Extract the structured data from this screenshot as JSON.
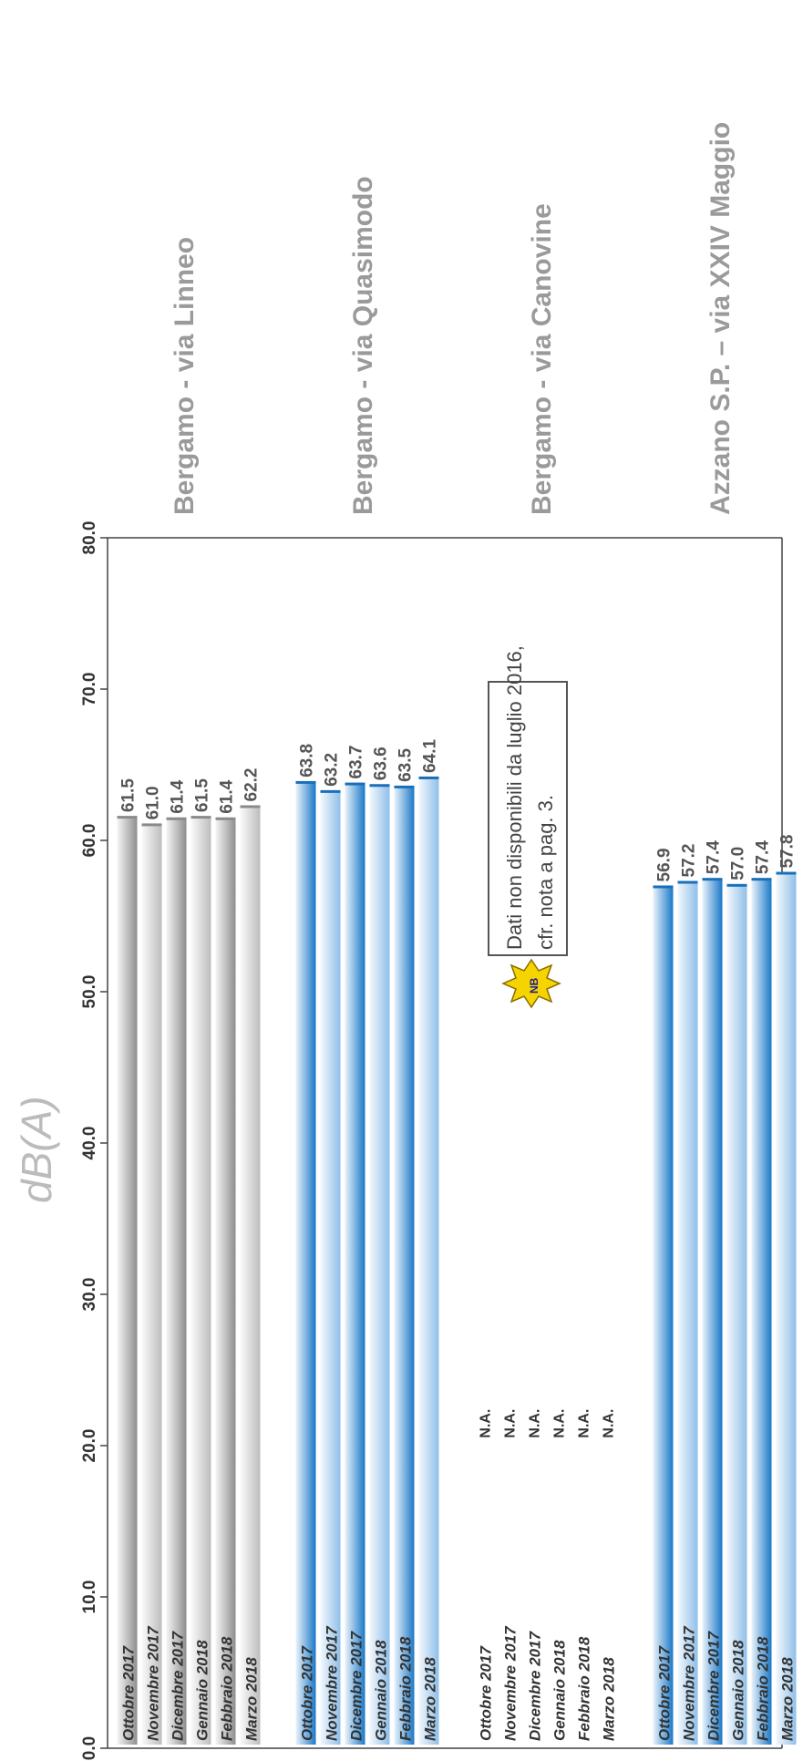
{
  "chart_data": {
    "type": "bar",
    "orientation": "horizontal",
    "ylabel": "dB(A)",
    "ylim": [
      0,
      80
    ],
    "ticks": [
      "0.0",
      "10.0",
      "20.0",
      "30.0",
      "40.0",
      "50.0",
      "60.0",
      "70.0",
      "80.0"
    ],
    "tick_values": [
      0,
      10,
      20,
      30,
      40,
      50,
      60,
      70,
      80
    ],
    "grid": false,
    "groups": [
      {
        "name": "Bergamo - via Linneo",
        "style": "gray",
        "categories": [
          "Ottobre 2017",
          "Novembre 2017",
          "Dicembre 2017",
          "Gennaio 2018",
          "Febbraio 2018",
          "Marzo 2018"
        ],
        "values": [
          61.5,
          61.0,
          61.4,
          61.5,
          61.4,
          62.2
        ],
        "labels": [
          "61.5",
          "61.0",
          "61.4",
          "61.5",
          "61.4",
          "62.2"
        ]
      },
      {
        "name": "Bergamo - via Quasimodo",
        "style": "blue",
        "categories": [
          "Ottobre 2017",
          "Novembre 2017",
          "Dicembre 2017",
          "Gennaio 2018",
          "Febbraio 2018",
          "Marzo 2018"
        ],
        "values": [
          63.8,
          63.2,
          63.7,
          63.6,
          63.5,
          64.1
        ],
        "labels": [
          "63.8",
          "63.2",
          "63.7",
          "63.6",
          "63.5",
          "64.1"
        ]
      },
      {
        "name": "Bergamo - via Canovine",
        "style": "none",
        "categories": [
          "Ottobre 2017",
          "Novembre 2017",
          "Dicembre 2017",
          "Gennaio 2018",
          "Febbraio 2018",
          "Marzo 2018"
        ],
        "values": [
          null,
          null,
          null,
          null,
          null,
          null
        ],
        "labels": [
          "N.A.",
          "N.A.",
          "N.A.",
          "N.A.",
          "N.A.",
          "N.A."
        ]
      },
      {
        "name": "Azzano S.P. – via XXIV Maggio",
        "style": "blue",
        "categories": [
          "Ottobre 2017",
          "Novembre 2017",
          "Dicembre 2017",
          "Gennaio 2018",
          "Febbraio 2018",
          "Marzo 2018"
        ],
        "values": [
          56.9,
          57.2,
          57.4,
          57.0,
          57.4,
          57.8
        ],
        "labels": [
          "56.9",
          "57.2",
          "57.4",
          "57.0",
          "57.4",
          "57.8"
        ]
      }
    ],
    "note": {
      "badge": "NB",
      "line1": "Dati non disponibili da luglio 2016,",
      "line2": "cfr. nota a pag. 3."
    },
    "colors": {
      "gray_dark": "#8e8e8e",
      "gray_light": "#f2f2f2",
      "blue_dark": "#1a78c8",
      "blue_light": "#e6f1fb",
      "title": "#9a9a9a",
      "label": "#555555",
      "category": "#333333",
      "badge_fill": "#f5d400",
      "badge_stroke": "#8a6d00"
    }
  }
}
